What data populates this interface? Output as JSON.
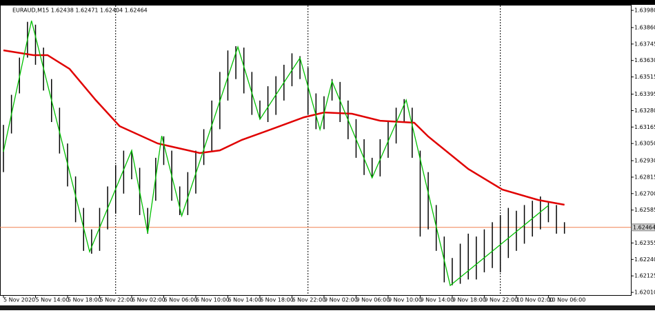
{
  "chart_data": {
    "type": "ohlc",
    "title": "EURAUD,M15  1.62438 1.62471 1.62404 1.62464",
    "xlim": [
      -1.72,
      313.15
    ],
    "ylim": [
      1.61991,
      1.64014
    ],
    "xticks": [
      {
        "value": 0,
        "label": "5 Nov 2020"
      },
      {
        "value": 16,
        "label": "5 Nov 14:00"
      },
      {
        "value": 32,
        "label": "5 Nov 18:00"
      },
      {
        "value": 48,
        "label": "5 Nov 22:00"
      },
      {
        "value": 64,
        "label": "6 Nov 02:00"
      },
      {
        "value": 80,
        "label": "6 Nov 06:00"
      },
      {
        "value": 96,
        "label": "6 Nov 10:00"
      },
      {
        "value": 112,
        "label": "6 Nov 14:00"
      },
      {
        "value": 128,
        "label": "6 Nov 18:00"
      },
      {
        "value": 144,
        "label": "6 Nov 22:00"
      },
      {
        "value": 160,
        "label": "9 Nov 02:00"
      },
      {
        "value": 176,
        "label": "9 Nov 06:00"
      },
      {
        "value": 192,
        "label": "9 Nov 10:00"
      },
      {
        "value": 208,
        "label": "9 Nov 14:00"
      },
      {
        "value": 224,
        "label": "9 Nov 18:00"
      },
      {
        "value": 240,
        "label": "9 Nov 22:00"
      },
      {
        "value": 256,
        "label": "10 Nov 02:00"
      },
      {
        "value": 272,
        "label": "10 Nov 06:00"
      }
    ],
    "yticks": [
      {
        "value": 1.6398,
        "label": "1.63980"
      },
      {
        "value": 1.6386,
        "label": "1.63860"
      },
      {
        "value": 1.63745,
        "label": "1.63745"
      },
      {
        "value": 1.6363,
        "label": "1.63630"
      },
      {
        "value": 1.63515,
        "label": "1.63515"
      },
      {
        "value": 1.63395,
        "label": "1.63395"
      },
      {
        "value": 1.6328,
        "label": "1.63280"
      },
      {
        "value": 1.63165,
        "label": "1.63165"
      },
      {
        "value": 1.6305,
        "label": "1.63050"
      },
      {
        "value": 1.6293,
        "label": "1.62930"
      },
      {
        "value": 1.62815,
        "label": "1.62815"
      },
      {
        "value": 1.627,
        "label": "1.62700"
      },
      {
        "value": 1.62585,
        "label": "1.62585"
      },
      {
        "value": 1.62355,
        "label": "1.62355"
      },
      {
        "value": 1.6224,
        "label": "1.62240"
      },
      {
        "value": 1.62125,
        "label": "1.62125"
      },
      {
        "value": 1.6201,
        "label": "1.62010"
      }
    ],
    "separators": [
      56,
      152,
      248
    ],
    "bars": {
      "color": "#000000",
      "x": [
        0,
        4,
        8,
        12,
        16,
        20,
        24,
        28,
        32,
        36,
        40,
        44,
        48,
        52,
        56,
        60,
        64,
        68,
        72,
        76,
        80,
        84,
        88,
        92,
        96,
        100,
        104,
        108,
        112,
        116,
        120,
        124,
        128,
        132,
        136,
        140,
        144,
        148,
        152,
        156,
        160,
        164,
        168,
        172,
        176,
        180,
        184,
        188,
        192,
        196,
        200,
        204,
        208,
        212,
        216,
        220,
        224,
        228,
        232,
        236,
        240,
        244,
        248,
        252,
        256,
        260,
        264,
        268,
        272,
        276,
        280
      ],
      "high": [
        1.6318,
        1.6339,
        1.6365,
        1.639,
        1.6388,
        1.6372,
        1.635,
        1.633,
        1.6305,
        1.6282,
        1.626,
        1.6245,
        1.626,
        1.6275,
        1.629,
        1.63,
        1.63,
        1.6288,
        1.626,
        1.6295,
        1.631,
        1.63,
        1.6275,
        1.6285,
        1.63,
        1.6315,
        1.6335,
        1.6355,
        1.637,
        1.6373,
        1.6372,
        1.6355,
        1.6335,
        1.6345,
        1.6352,
        1.636,
        1.6368,
        1.6366,
        1.6358,
        1.634,
        1.6338,
        1.635,
        1.6348,
        1.6335,
        1.6322,
        1.6308,
        1.6295,
        1.6308,
        1.632,
        1.633,
        1.6336,
        1.633,
        1.63,
        1.6285,
        1.6262,
        1.624,
        1.6225,
        1.6235,
        1.6242,
        1.624,
        1.6245,
        1.625,
        1.6255,
        1.626,
        1.6258,
        1.6262,
        1.6265,
        1.6268,
        1.6264,
        1.6262,
        1.625
      ],
      "low": [
        1.6285,
        1.6312,
        1.634,
        1.6365,
        1.636,
        1.6342,
        1.632,
        1.6298,
        1.6275,
        1.625,
        1.623,
        1.6228,
        1.623,
        1.6245,
        1.6256,
        1.627,
        1.628,
        1.6255,
        1.6242,
        1.6265,
        1.629,
        1.6265,
        1.6255,
        1.6255,
        1.627,
        1.629,
        1.63,
        1.6315,
        1.6335,
        1.635,
        1.634,
        1.6325,
        1.6322,
        1.632,
        1.6325,
        1.6335,
        1.6345,
        1.635,
        1.6325,
        1.6315,
        1.6315,
        1.6335,
        1.632,
        1.6308,
        1.6295,
        1.6283,
        1.6281,
        1.6282,
        1.6295,
        1.6305,
        1.632,
        1.6295,
        1.624,
        1.6245,
        1.623,
        1.6208,
        1.6206,
        1.6207,
        1.621,
        1.621,
        1.6215,
        1.6218,
        1.6215,
        1.6225,
        1.623,
        1.6235,
        1.624,
        1.6245,
        1.625,
        1.6242,
        1.6242
      ]
    },
    "zigzag": {
      "color": "#00c000",
      "x": [
        0,
        14,
        43,
        64,
        72,
        79,
        89,
        117,
        128,
        148,
        158,
        164,
        184,
        201,
        223,
        272
      ],
      "y": [
        1.62993,
        1.63908,
        1.62294,
        1.63002,
        1.62424,
        1.63103,
        1.62545,
        1.63725,
        1.63219,
        1.63648,
        1.63147,
        1.63484,
        1.6281,
        1.63354,
        1.62058,
        1.62617
      ]
    },
    "moving_average": {
      "color": "#e00000",
      "x": [
        0,
        15,
        22,
        33,
        46,
        58,
        77,
        98,
        108,
        119,
        136,
        150,
        160,
        174,
        188,
        205,
        212,
        232,
        249,
        267,
        280
      ],
      "y": [
        1.63701,
        1.63667,
        1.63667,
        1.63571,
        1.63354,
        1.63171,
        1.6305,
        1.62983,
        1.63002,
        1.63075,
        1.63161,
        1.63233,
        1.63267,
        1.63258,
        1.63209,
        1.63195,
        1.63099,
        1.62872,
        1.62728,
        1.62655,
        1.62622
      ]
    },
    "last_price": {
      "value": 1.62464,
      "label": "1.62464",
      "color": "#f08050"
    }
  }
}
